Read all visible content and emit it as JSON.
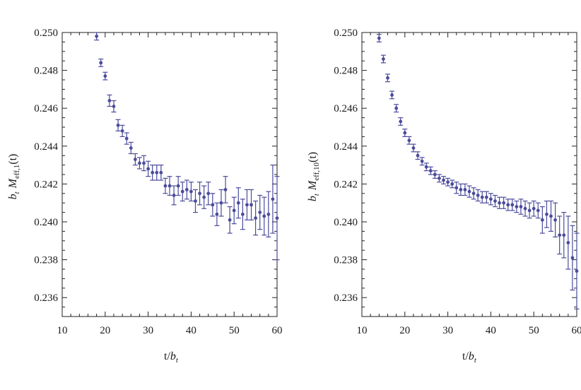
{
  "chart_data": [
    {
      "type": "scatter",
      "title": "",
      "xlabel": "t/b_t",
      "ylabel": "b_t M_eff,1(t)",
      "xlim": [
        10,
        60
      ],
      "ylim": [
        0.235,
        0.25
      ],
      "xticks": [
        "10",
        "20",
        "30",
        "40",
        "50",
        "60"
      ],
      "yticks": [
        "0.236",
        "0.238",
        "0.240",
        "0.242",
        "0.244",
        "0.246",
        "0.248",
        "0.250"
      ],
      "color": "#4b4b9c",
      "series": [
        {
          "name": "M_eff,1",
          "x": [
            18,
            19,
            20,
            21,
            22,
            23,
            24,
            25,
            26,
            27,
            28,
            29,
            30,
            31,
            32,
            33,
            34,
            35,
            36,
            37,
            38,
            39,
            40,
            41,
            42,
            43,
            44,
            45,
            46,
            47,
            48,
            49,
            50,
            51,
            52,
            53,
            54,
            55,
            56,
            57,
            58,
            59,
            60
          ],
          "y": [
            0.2498,
            0.2484,
            0.2477,
            0.2464,
            0.2461,
            0.2451,
            0.2448,
            0.2444,
            0.2439,
            0.2433,
            0.2431,
            0.2431,
            0.2428,
            0.2426,
            0.2426,
            0.2426,
            0.2419,
            0.2419,
            0.2414,
            0.2419,
            0.2416,
            0.2417,
            0.2416,
            0.2411,
            0.2415,
            0.2413,
            0.2415,
            0.2409,
            0.2404,
            0.241,
            0.2417,
            0.2401,
            0.2406,
            0.241,
            0.2404,
            0.2409,
            0.2409,
            0.2402,
            0.2405,
            0.2403,
            0.2404,
            0.2412,
            0.2402
          ],
          "err": [
            0.0002,
            0.0002,
            0.0002,
            0.0003,
            0.0003,
            0.0003,
            0.0003,
            0.0003,
            0.0003,
            0.0003,
            0.0003,
            0.0004,
            0.0004,
            0.0004,
            0.0004,
            0.0004,
            0.0004,
            0.0005,
            0.0005,
            0.0005,
            0.0005,
            0.0005,
            0.0005,
            0.0006,
            0.0006,
            0.0006,
            0.0006,
            0.0006,
            0.0006,
            0.0007,
            0.0007,
            0.0007,
            0.0007,
            0.0008,
            0.0008,
            0.0008,
            0.0008,
            0.0009,
            0.0009,
            0.001,
            0.0012,
            0.0018,
            0.0022
          ]
        }
      ]
    },
    {
      "type": "scatter",
      "title": "",
      "xlabel": "t/b_t",
      "ylabel": "b_t M_eff,10(t)",
      "xlim": [
        10,
        60
      ],
      "ylim": [
        0.235,
        0.25
      ],
      "xticks": [
        "10",
        "20",
        "30",
        "40",
        "50",
        "60"
      ],
      "yticks": [
        "0.236",
        "0.238",
        "0.240",
        "0.242",
        "0.244",
        "0.246",
        "0.248",
        "0.250"
      ],
      "color": "#4b4b9c",
      "series": [
        {
          "name": "M_eff,10",
          "x": [
            14,
            15,
            16,
            17,
            18,
            19,
            20,
            21,
            22,
            23,
            24,
            25,
            26,
            27,
            28,
            29,
            30,
            31,
            32,
            33,
            34,
            35,
            36,
            37,
            38,
            39,
            40,
            41,
            42,
            43,
            44,
            45,
            46,
            47,
            48,
            49,
            50,
            51,
            52,
            53,
            54,
            55,
            56,
            57,
            58,
            59,
            60
          ],
          "y": [
            0.2497,
            0.2486,
            0.2476,
            0.2467,
            0.246,
            0.2453,
            0.2447,
            0.2443,
            0.2439,
            0.2435,
            0.2432,
            0.2429,
            0.2427,
            0.2425,
            0.2423,
            0.2422,
            0.2421,
            0.242,
            0.2418,
            0.2417,
            0.2417,
            0.2416,
            0.2415,
            0.2414,
            0.2413,
            0.2413,
            0.2412,
            0.2411,
            0.241,
            0.241,
            0.2409,
            0.2409,
            0.2408,
            0.2408,
            0.2407,
            0.2406,
            0.2407,
            0.2406,
            0.2401,
            0.2404,
            0.2403,
            0.2401,
            0.2393,
            0.2393,
            0.2389,
            0.2381,
            0.2374
          ],
          "err": [
            0.0002,
            0.0002,
            0.0002,
            0.0002,
            0.0002,
            0.0002,
            0.0002,
            0.0002,
            0.0002,
            0.0002,
            0.0002,
            0.0002,
            0.0002,
            0.0002,
            0.0002,
            0.0002,
            0.0002,
            0.0002,
            0.0003,
            0.0003,
            0.0003,
            0.0003,
            0.0003,
            0.0003,
            0.0003,
            0.0003,
            0.0003,
            0.0003,
            0.0003,
            0.0003,
            0.0003,
            0.0003,
            0.0003,
            0.0004,
            0.0004,
            0.0004,
            0.0004,
            0.0004,
            0.0007,
            0.0007,
            0.0008,
            0.0009,
            0.001,
            0.0012,
            0.0014,
            0.0017,
            0.002
          ]
        }
      ]
    }
  ]
}
